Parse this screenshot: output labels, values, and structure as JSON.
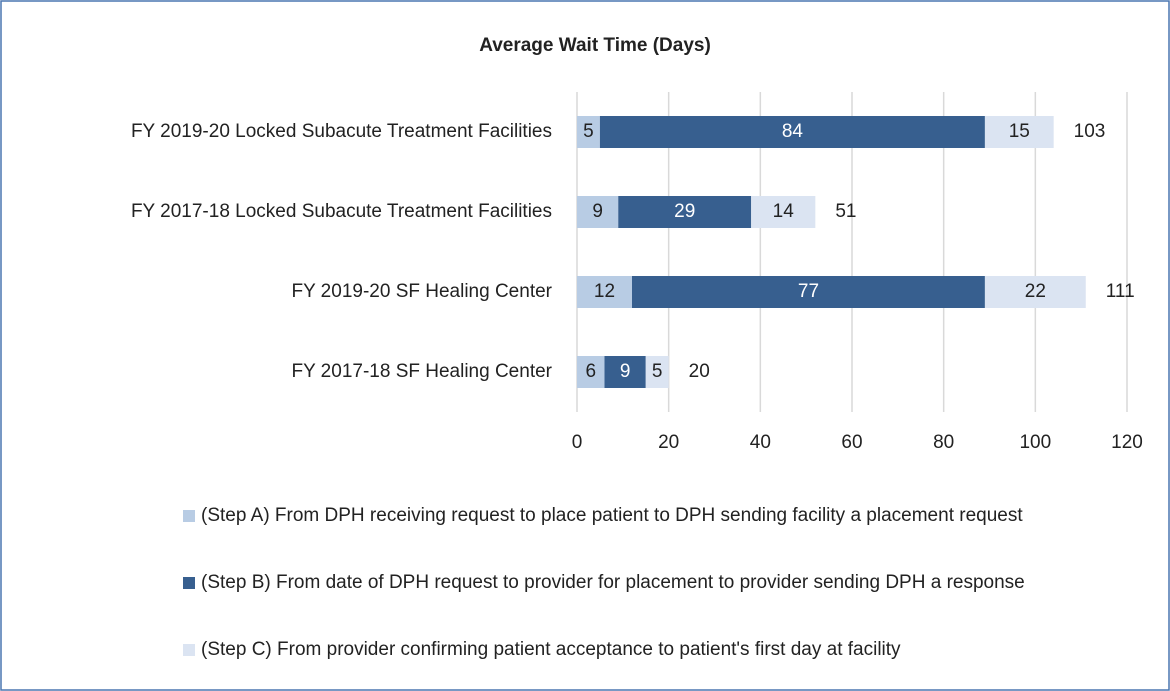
{
  "chart_data": {
    "type": "stacked_barh",
    "title": "Average Wait Time (Days)",
    "categories": [
      "FY 2019-20 Locked Subacute Treatment Facilities",
      "FY 2017-18 Locked Subacute Treatment Facilities",
      "FY 2019-20 SF Healing Center",
      "FY 2017-18 SF Healing Center"
    ],
    "series": [
      {
        "name": "(Step A) From DPH receiving request to place patient to DPH sending facility a placement request",
        "color": "#b8cce4",
        "values": [
          5,
          9,
          12,
          6
        ]
      },
      {
        "name": "(Step B) From date of DPH request to provider for placement to provider sending DPH a response",
        "color": "#375f8f",
        "values": [
          84,
          29,
          77,
          9
        ]
      },
      {
        "name": "(Step C) From provider confirming patient acceptance to patient's first day at facility",
        "color": "#dbe4f2",
        "values": [
          15,
          14,
          22,
          5
        ]
      }
    ],
    "totals": [
      103,
      51,
      111,
      20
    ],
    "xlim": [
      0,
      120
    ],
    "xticks": [
      0,
      20,
      40,
      60,
      80,
      100,
      120
    ],
    "grid": true
  }
}
